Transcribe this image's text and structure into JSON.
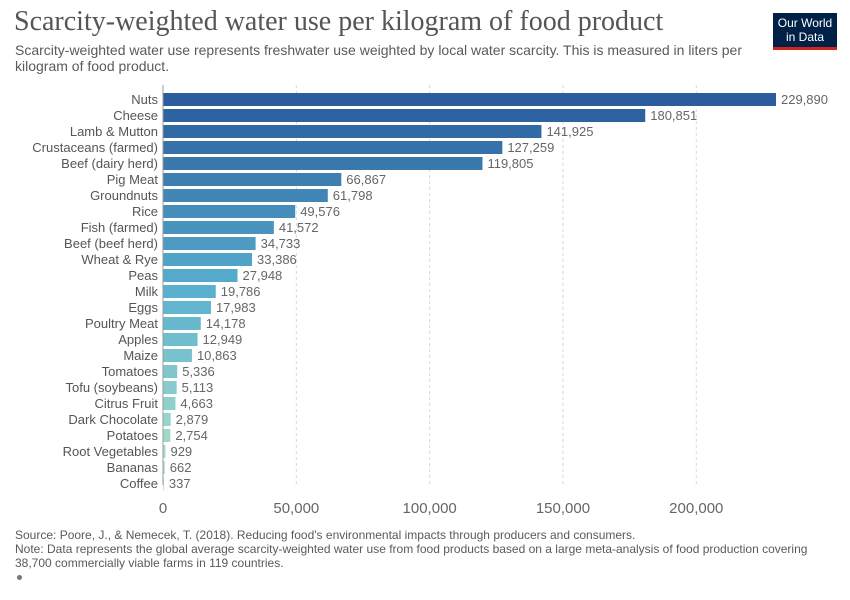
{
  "title": "Scarcity-weighted water use per kilogram of food product",
  "subtitle": "Scarcity-weighted water use represents freshwater use weighted by local water scarcity. This is measured in liters per kilogram of food product.",
  "logo": {
    "line1": "Our World",
    "line2": "in Data",
    "bg": "#002147",
    "accent": "#ce261e"
  },
  "footer": {
    "source": "Source: Poore, J., & Nemecek, T. (2018). Reducing food's environmental impacts through producers and consumers.",
    "note": "Note: Data represents the global average scarcity-weighted water use from food products based on a large meta-analysis of food production covering 38,700 commercially viable farms in 119 countries."
  },
  "chart_data": {
    "type": "bar",
    "orientation": "horizontal",
    "categories": [
      "Nuts",
      "Cheese",
      "Lamb & Mutton",
      "Crustaceans (farmed)",
      "Beef (dairy herd)",
      "Pig Meat",
      "Groundnuts",
      "Rice",
      "Fish (farmed)",
      "Beef (beef herd)",
      "Wheat & Rye",
      "Peas",
      "Milk",
      "Eggs",
      "Poultry Meat",
      "Apples",
      "Maize",
      "Tomatoes",
      "Tofu (soybeans)",
      "Citrus Fruit",
      "Dark Chocolate",
      "Potatoes",
      "Root Vegetables",
      "Bananas",
      "Coffee"
    ],
    "values": [
      229890,
      180851,
      141925,
      127259,
      119805,
      66867,
      61798,
      49576,
      41572,
      34733,
      33386,
      27948,
      19786,
      17983,
      14178,
      12949,
      10863,
      5336,
      5113,
      4663,
      2879,
      2754,
      929,
      662,
      337
    ],
    "value_labels": [
      "229,890",
      "180,851",
      "141,925",
      "127,259",
      "119,805",
      "66,867",
      "61,798",
      "49,576",
      "41,572",
      "34,733",
      "33,386",
      "27,948",
      "19,786",
      "17,983",
      "14,178",
      "12,949",
      "10,863",
      "5,336",
      "5,113",
      "4,663",
      "2,879",
      "2,754",
      "929",
      "662",
      "337"
    ],
    "xlim": [
      0,
      229890
    ],
    "xticks": [
      0,
      50000,
      100000,
      150000,
      200000
    ],
    "xtick_labels": [
      "0",
      "50,000",
      "100,000",
      "150,000",
      "200,000"
    ],
    "grid": true,
    "color_scale": {
      "high": "#2a5c9e",
      "mid": "#59b0cf",
      "low": "#b6e6c8"
    }
  }
}
